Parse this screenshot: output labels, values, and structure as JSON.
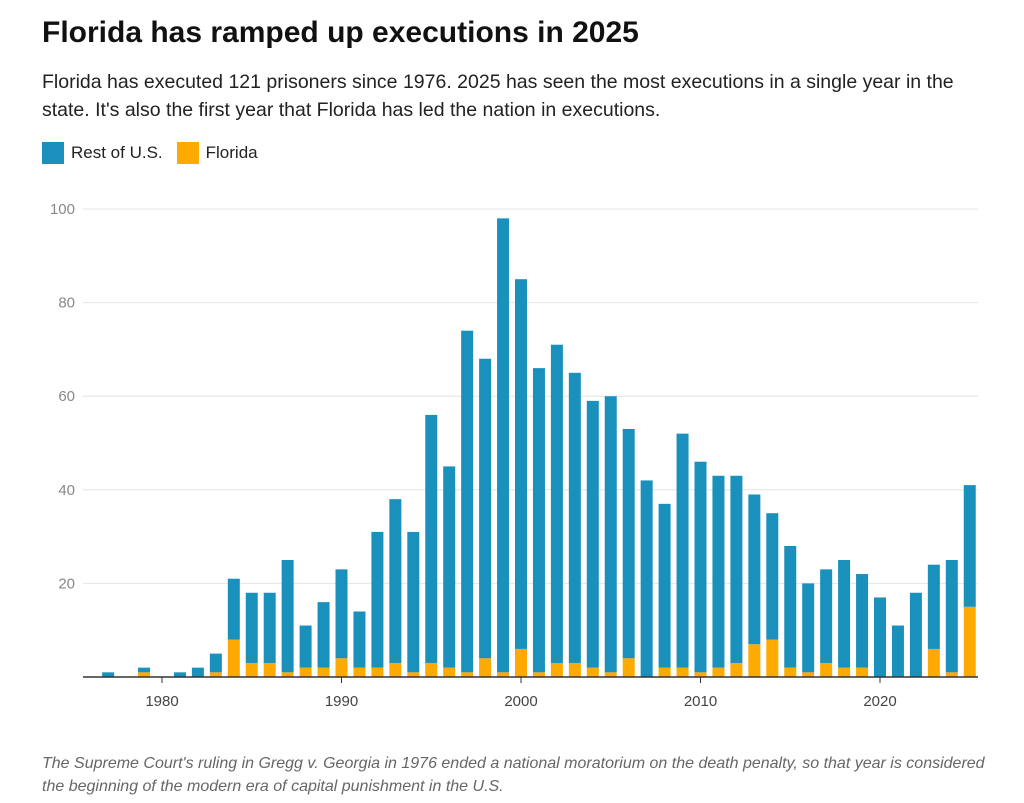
{
  "chart_data": {
    "type": "bar",
    "stacked": true,
    "title": "Florida has ramped up executions in 2025",
    "subtitle": "Florida has executed 121 prisoners since 1976. 2025 has seen the most executions in a single year in the state. It's also the first year that Florida has led the nation in executions.",
    "note": "The Supreme Court's ruling in Gregg v. Georgia in 1976 ended a national moratorium on the death penalty, so that year is considered the beginning of the modern era of capital punishment in the U.S.",
    "xlabel": "",
    "ylabel": "",
    "ylim": [
      0,
      100
    ],
    "yticks": [
      20,
      40,
      60,
      80,
      100
    ],
    "xticks": [
      1980,
      1990,
      2000,
      2010,
      2020
    ],
    "grid": true,
    "legend_position": "top-left",
    "categories": [
      1976,
      1977,
      1978,
      1979,
      1980,
      1981,
      1982,
      1983,
      1984,
      1985,
      1986,
      1987,
      1988,
      1989,
      1990,
      1991,
      1992,
      1993,
      1994,
      1995,
      1996,
      1997,
      1998,
      1999,
      2000,
      2001,
      2002,
      2003,
      2004,
      2005,
      2006,
      2007,
      2008,
      2009,
      2010,
      2011,
      2012,
      2013,
      2014,
      2015,
      2016,
      2017,
      2018,
      2019,
      2020,
      2021,
      2022,
      2023,
      2024,
      2025
    ],
    "series": [
      {
        "name": "Florida",
        "color": "#ffaa00",
        "values": [
          0,
          0,
          0,
          1,
          0,
          0,
          0,
          1,
          8,
          3,
          3,
          1,
          2,
          2,
          4,
          2,
          2,
          3,
          1,
          3,
          2,
          1,
          4,
          1,
          6,
          1,
          3,
          3,
          2,
          1,
          4,
          0,
          2,
          2,
          1,
          2,
          3,
          7,
          8,
          2,
          1,
          3,
          2,
          2,
          0,
          0,
          0,
          6,
          1,
          15
        ]
      },
      {
        "name": "Rest of U.S.",
        "color": "#1a91bd",
        "values": [
          0,
          1,
          0,
          1,
          0,
          1,
          2,
          4,
          13,
          15,
          15,
          24,
          9,
          14,
          19,
          12,
          29,
          35,
          30,
          53,
          43,
          73,
          64,
          97,
          79,
          65,
          68,
          62,
          57,
          59,
          49,
          42,
          35,
          50,
          45,
          41,
          40,
          32,
          27,
          26,
          19,
          20,
          23,
          20,
          17,
          11,
          18,
          18,
          24,
          26
        ]
      }
    ],
    "legend": [
      {
        "name": "Rest of U.S.",
        "color": "#1a91bd"
      },
      {
        "name": "Florida",
        "color": "#ffaa00"
      }
    ]
  }
}
